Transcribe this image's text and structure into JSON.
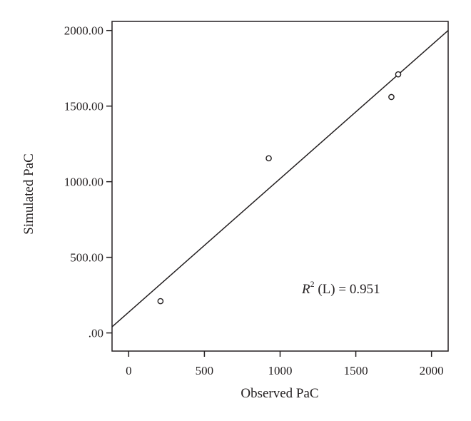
{
  "chart_data": {
    "type": "scatter",
    "title": "",
    "xlabel": "Observed PaC",
    "ylabel": "Simulated PaC",
    "xlim": [
      -110,
      2110
    ],
    "ylim": [
      -120,
      2060
    ],
    "x_ticks": [
      0,
      500,
      1000,
      1500,
      2000
    ],
    "x_tick_labels": [
      "0",
      "500",
      "1000",
      "1500",
      "2000"
    ],
    "y_ticks": [
      0,
      500,
      1000,
      1500,
      2000
    ],
    "y_tick_labels": [
      ".00",
      "500.00",
      "1000.00",
      "1500.00",
      "2000.00"
    ],
    "grid": false,
    "legend": "none",
    "points": [
      {
        "x": 210,
        "y": 210
      },
      {
        "x": 925,
        "y": 1155
      },
      {
        "x": 1735,
        "y": 1560
      },
      {
        "x": 1780,
        "y": 1710
      }
    ],
    "fit_line": {
      "x": [
        -110,
        2110
      ],
      "y": [
        40,
        2000
      ]
    },
    "annotation": {
      "r_label": "R",
      "sup": "2",
      "rest": " (L) = 0.951"
    }
  }
}
